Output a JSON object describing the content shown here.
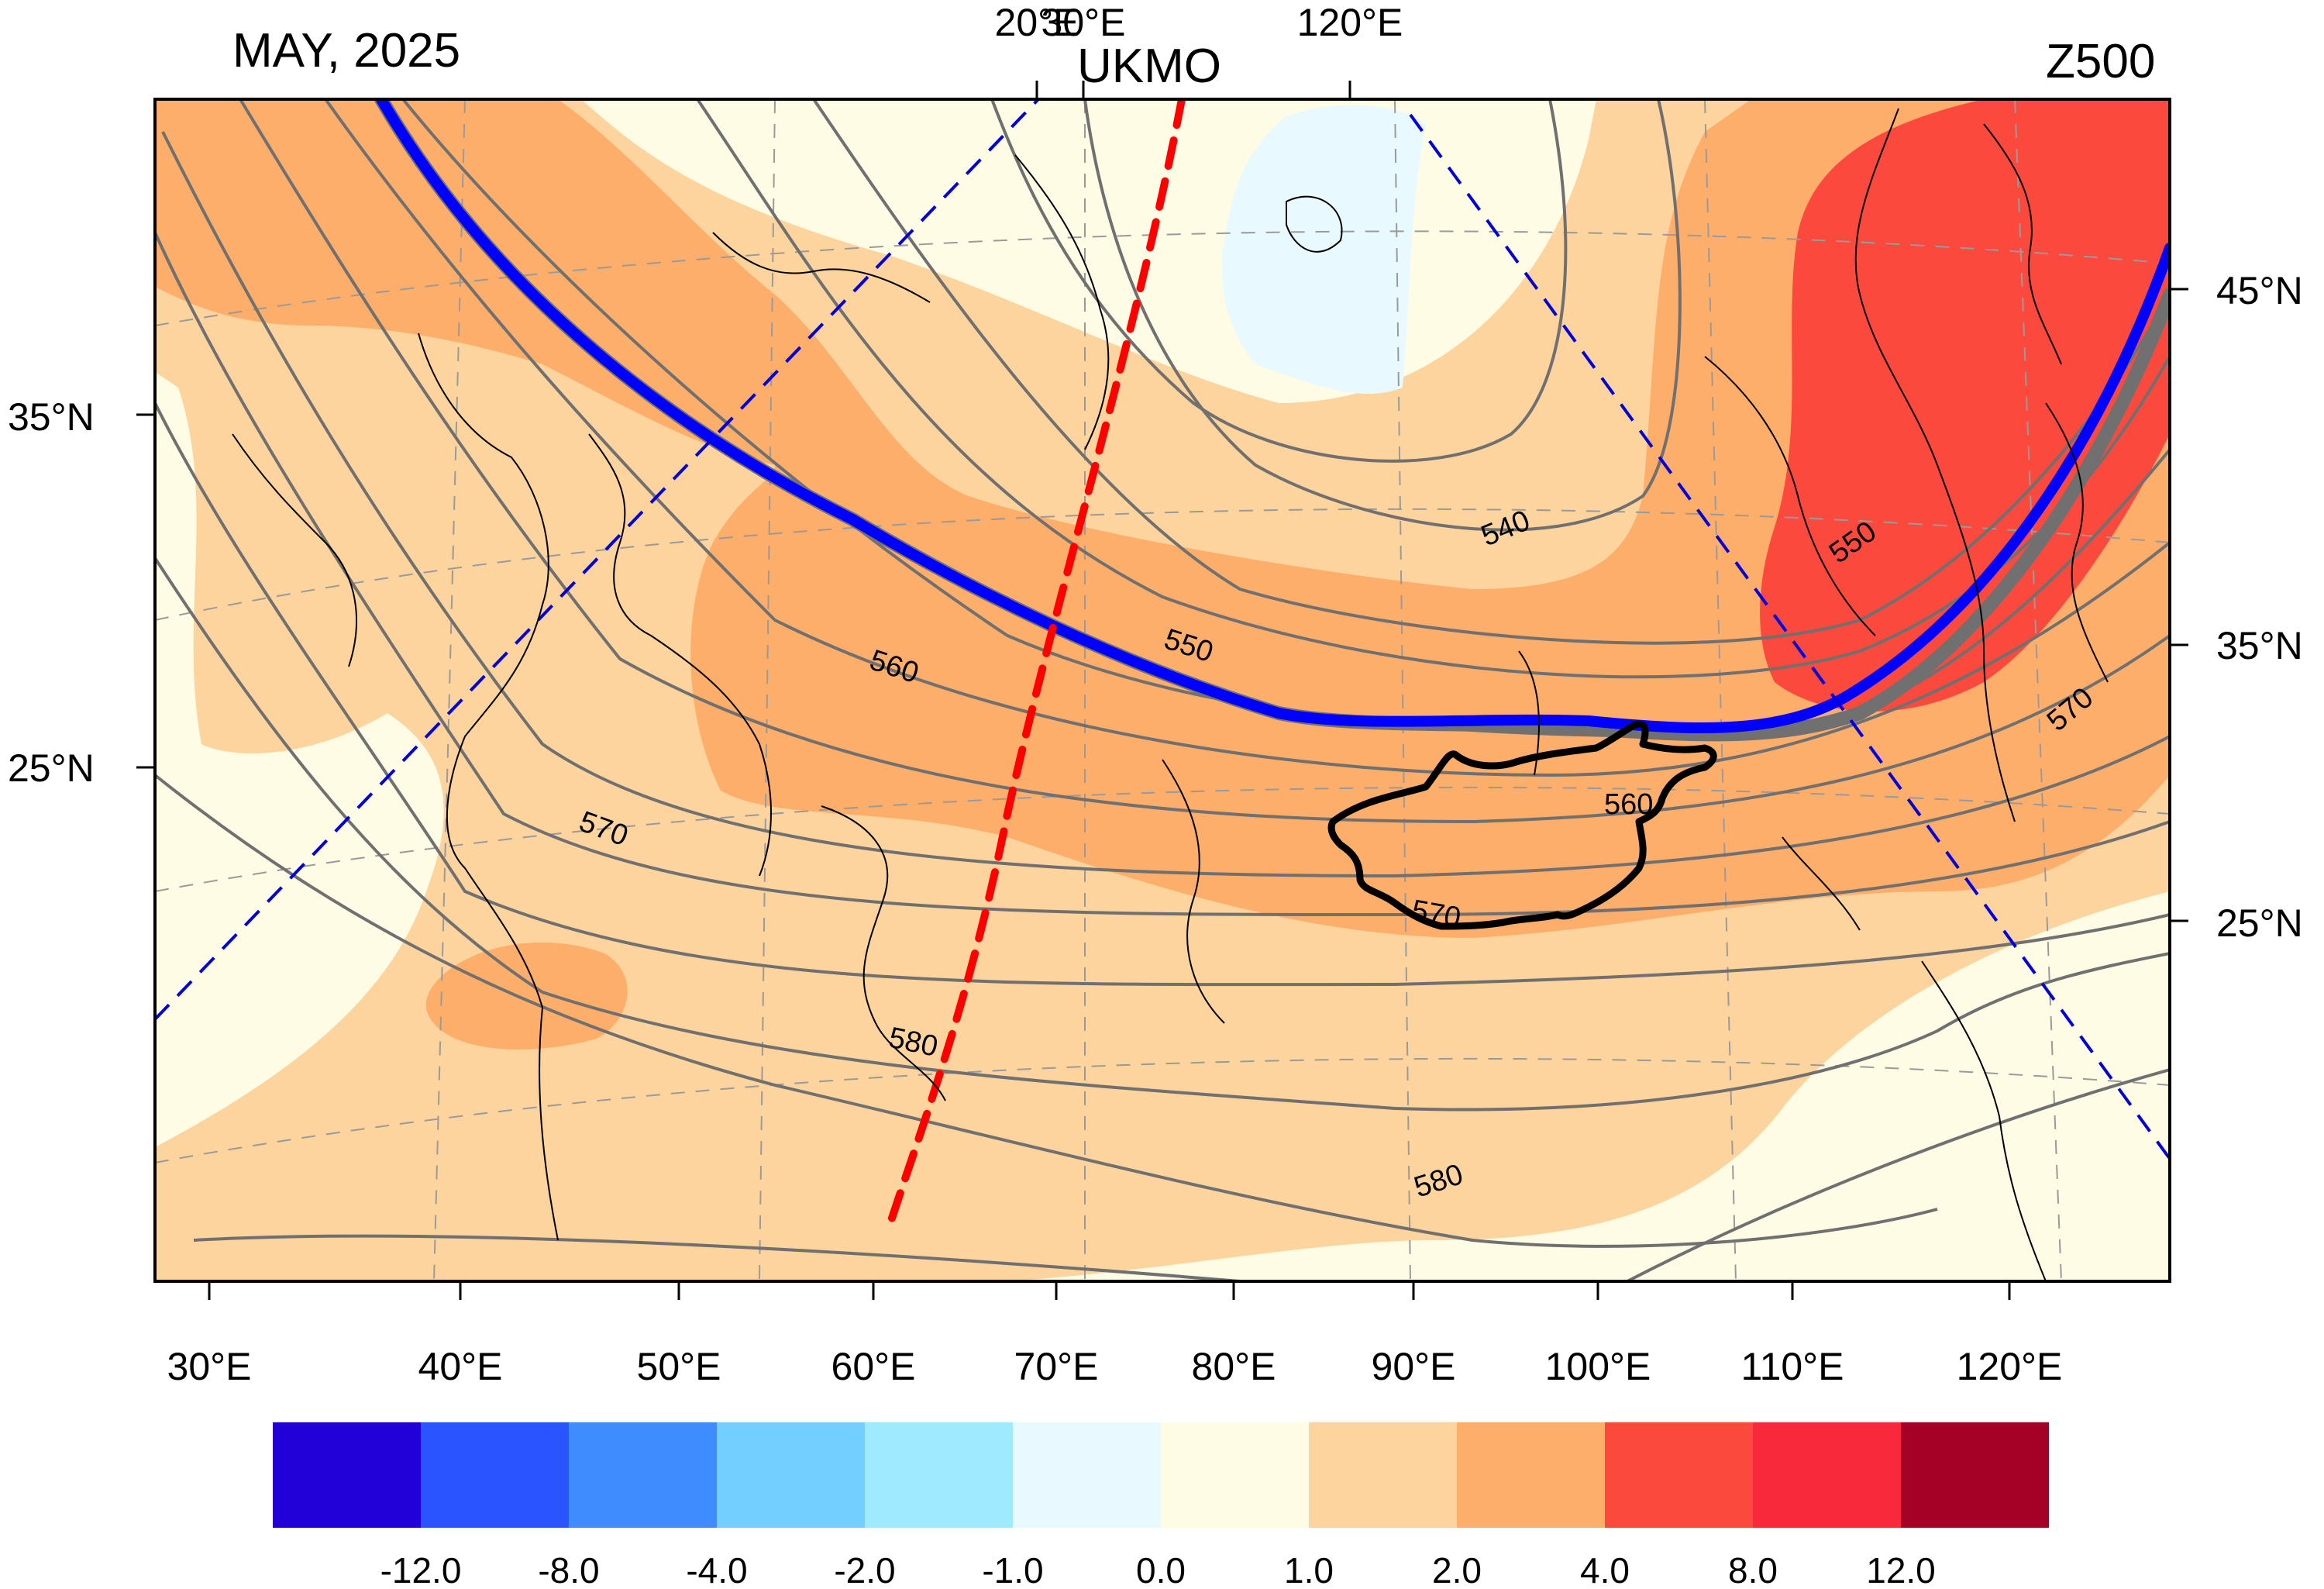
{
  "header": {
    "left": "MAY, 2025",
    "center": "UKMO",
    "right": "Z500",
    "top_tick_labels": [
      "20°E",
      "30°E",
      "120°E"
    ]
  },
  "map": {
    "left_lat_labels": [
      "35°N",
      "25°N"
    ],
    "right_lat_labels": [
      "45°N",
      "35°N",
      "25°N"
    ],
    "bottom_lon_labels": [
      "30°E",
      "40°E",
      "50°E",
      "60°E",
      "70°E",
      "80°E",
      "90°E",
      "100°E",
      "110°E",
      "120°E"
    ],
    "contour_labels": [
      "540",
      "550",
      "550",
      "560",
      "560",
      "570",
      "570",
      "570",
      "580",
      "580"
    ],
    "fill_colors": {
      "bg": "#fffce6",
      "light": "#fdd49e",
      "mid": "#fdae6b",
      "red": "#fb4a3d",
      "blue": "#e8faff"
    },
    "ridge_line_color": "#0000ff",
    "trough_line_color": "#ff0000"
  },
  "colorbar": {
    "colors": [
      "#2200d8",
      "#2a54ff",
      "#3f8cff",
      "#73cfff",
      "#9feaff",
      "#e8faff",
      "#fffce6",
      "#fdd49e",
      "#fdae6b",
      "#fb4a3d",
      "#f7293a",
      "#a50026"
    ],
    "labels": [
      "-12.0",
      "-8.0",
      "-4.0",
      "-2.0",
      "-1.0",
      "0.0",
      "1.0",
      "2.0",
      "4.0",
      "8.0",
      "12.0"
    ]
  }
}
